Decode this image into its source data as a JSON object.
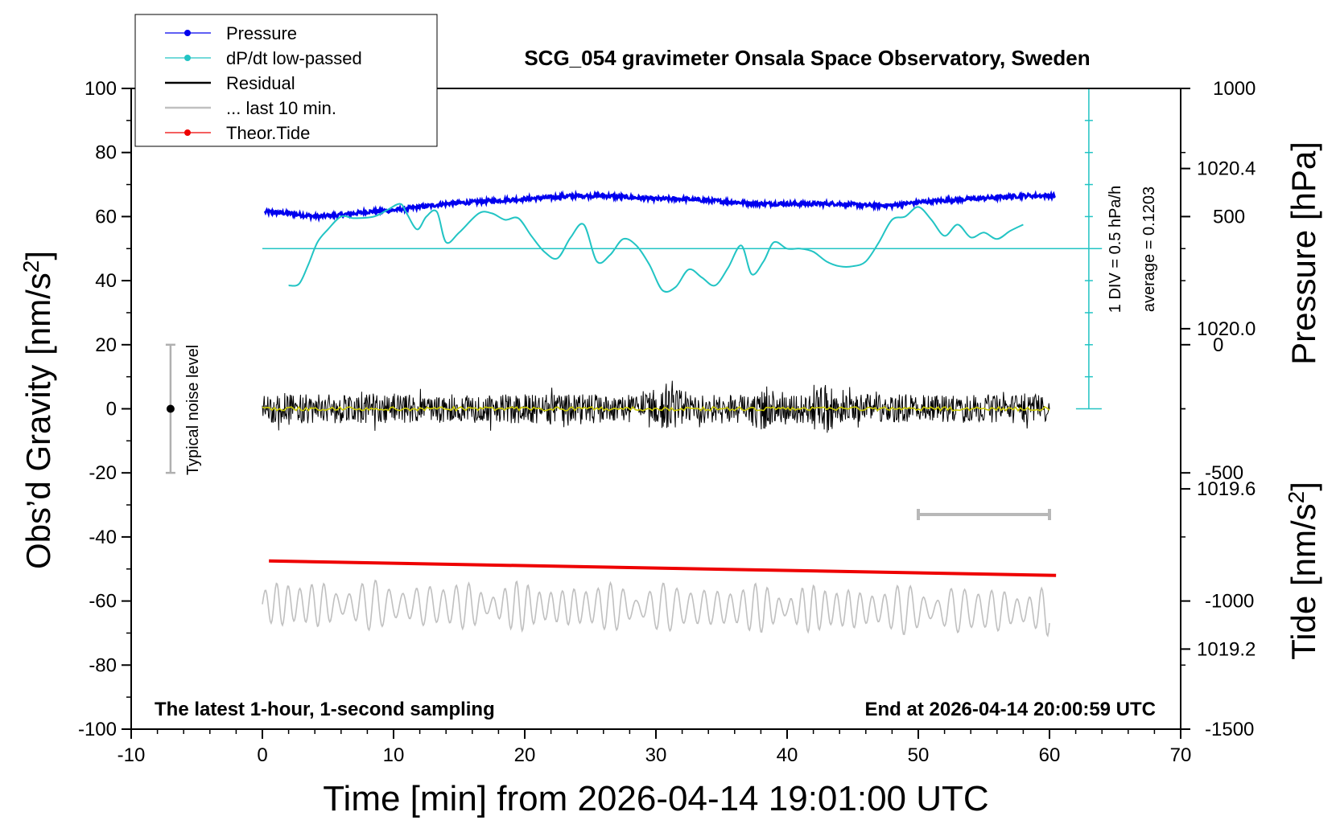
{
  "chart_data": {
    "type": "line",
    "title": "SCG_054 gravimeter Onsala Space Observatory, Sweden",
    "xlabel": "Time [min] from 2026-04-14 19:01:00 UTC",
    "ylabel_left": "Obs’d Gravity [nm/s",
    "ylabel_left_sup": "2",
    "ylabel_left_close": "]",
    "ylabel_right_pressure": "Pressure [hPa]",
    "ylabel_right_tide": "Tide [nm/s",
    "ylabel_right_tide_sup": "2",
    "ylabel_right_tide_close": "]",
    "xlim": [
      -10,
      70
    ],
    "ylim": [
      -100,
      100
    ],
    "x_ticks": [
      -10,
      0,
      10,
      20,
      30,
      40,
      50,
      60,
      70
    ],
    "y_ticks": [
      100,
      80,
      60,
      40,
      20,
      0,
      -20,
      -40,
      -60,
      -80,
      -100
    ],
    "y_tick_labels": [
      "100",
      "80",
      "60",
      "40",
      "20",
      "0",
      "-20",
      "-40",
      "-60",
      "-80",
      "-100"
    ],
    "pressure_axis": {
      "ticks": [
        1020.4,
        1020.0,
        1019.6,
        1019.2
      ],
      "tick_labels": [
        "1020.4",
        "1020.0",
        "1019.6",
        "1019.2"
      ],
      "range": [
        1019.0,
        1020.6
      ]
    },
    "tide_axis": {
      "ticks": [
        1000,
        500,
        0,
        -500,
        -1000,
        -1500
      ],
      "tick_labels": [
        "1000",
        "500",
        "0",
        "-500",
        "-1000",
        "-1500"
      ],
      "range": [
        -1500,
        1000
      ]
    },
    "bottom_left_note": "The latest 1-hour, 1-second sampling",
    "bottom_right_note": "End at 2026-04-14 20:00:59 UTC",
    "noise_label": "Typical noise level",
    "noise_bar": {
      "x": -7,
      "center": 0,
      "low": -20,
      "high": 20
    },
    "dpdt_scale_label": "1 DIV = 0.5 hPa/h",
    "dpdt_average_label": "average = 0.1203",
    "dpdt_baseline_y": 50,
    "scale_bar_x": [
      50,
      60
    ],
    "scale_bar_y": -33,
    "legend": [
      "Pressure",
      "dP/dt low-passed",
      "Residual",
      "... last 10 min.",
      "Theor.Tide"
    ],
    "legend_placement": "top-left",
    "colors": {
      "pressure": "#0000ee",
      "dpdt": "#22c4c4",
      "residual": "#000000",
      "residual_smooth": "#cccc00",
      "last10": "#c0c0c0",
      "tide": "#ee0000",
      "noise": "#b0b0b0"
    },
    "series": [
      {
        "name": "Pressure",
        "x": [
          0.2,
          2,
          4,
          6,
          8,
          10,
          12,
          14,
          16,
          18,
          20,
          22,
          24,
          26,
          28,
          30,
          32,
          34,
          36,
          38,
          40,
          42,
          44,
          46,
          48,
          50,
          52,
          54,
          56,
          58,
          60.5
        ],
        "y": [
          61.5,
          61,
          60,
          60.5,
          61.5,
          62,
          63,
          64,
          64.5,
          65,
          65.5,
          66,
          66.5,
          66.5,
          66,
          65.5,
          65.5,
          65,
          64.5,
          64,
          64,
          64,
          64,
          63.5,
          63.5,
          64.5,
          65,
          65.5,
          66,
          66.5,
          66.5
        ]
      },
      {
        "name": "dP/dt low-passed",
        "x": [
          2,
          2.8,
          3.5,
          4.2,
          5,
          6,
          7,
          8.5,
          9.5,
          10.5,
          11,
          11.8,
          12.5,
          13.3,
          14,
          15,
          16.5,
          17.5,
          18.5,
          19.5,
          20.5,
          21.5,
          22.5,
          23.5,
          24.5,
          25.5,
          26.5,
          27.5,
          28.5,
          29.5,
          30.5,
          31.5,
          32.5,
          33.5,
          34.5,
          35.5,
          36.5,
          37.3,
          38.2,
          39,
          40,
          41,
          42,
          43,
          44,
          45,
          46,
          47,
          48,
          49,
          50,
          51,
          52,
          53,
          54,
          55,
          56,
          57,
          58
        ],
        "y": [
          38.5,
          39,
          45,
          52,
          56,
          60,
          59.5,
          60,
          62,
          64,
          61,
          56,
          60,
          61.5,
          52,
          55,
          61,
          61,
          59,
          59.5,
          54,
          49,
          47,
          53.5,
          57.5,
          46,
          48,
          53,
          51,
          45,
          37,
          38,
          43.5,
          41,
          38.5,
          44,
          51,
          42,
          46,
          52,
          50,
          50,
          49,
          46,
          44.5,
          44.5,
          46,
          52,
          59,
          60,
          63,
          59,
          54,
          57.5,
          53.5,
          55,
          53,
          55.5,
          57.5
        ]
      },
      {
        "name": "Residual",
        "x": [
          0,
          60
        ],
        "y": [
          0,
          0
        ]
      },
      {
        "name": "... last 10 min.",
        "x": [
          0,
          60
        ],
        "y": [
          -61,
          -63
        ]
      },
      {
        "name": "Theor.Tide",
        "x": [
          0.5,
          60.5
        ],
        "y": [
          -47.5,
          -52
        ]
      }
    ]
  }
}
